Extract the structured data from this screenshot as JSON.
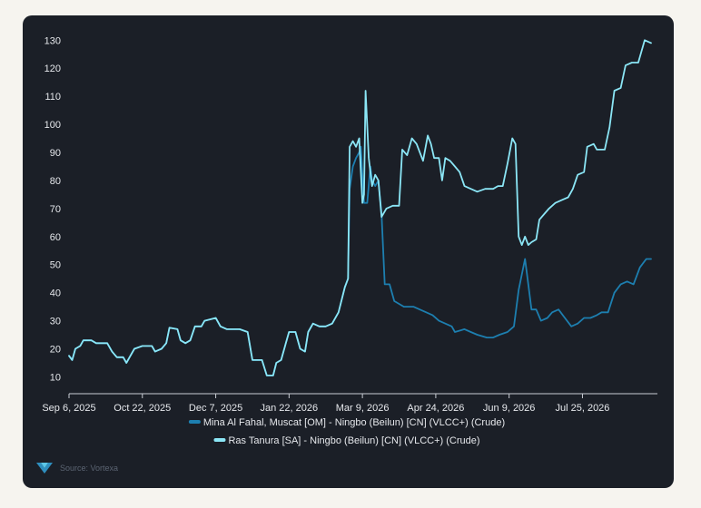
{
  "source": {
    "text": "Source: Vortexa",
    "logo_icon": "vortexa-logo"
  },
  "colors": {
    "background": "#1b1f27",
    "page": "#f6f4ef",
    "axis": "#c9cdd4",
    "text": "#e6e8ec"
  },
  "chart_data": {
    "type": "line",
    "title": "",
    "xlabel": "",
    "ylabel": "",
    "grid": false,
    "legend_position": "bottom-center",
    "x_range": [
      "2025-09-06",
      "2026-09-10"
    ],
    "ylim": [
      4,
      133
    ],
    "y_ticks": [
      10,
      20,
      30,
      40,
      50,
      60,
      70,
      80,
      90,
      100,
      110,
      120,
      130
    ],
    "x_ticks": [
      {
        "date": "2025-09-06",
        "label": "Sep 6, 2025"
      },
      {
        "date": "2025-10-22",
        "label": "Oct 22, 2025"
      },
      {
        "date": "2025-12-07",
        "label": "Dec 7, 2025"
      },
      {
        "date": "2026-01-22",
        "label": "Jan 22, 2026"
      },
      {
        "date": "2026-03-09",
        "label": "Mar 9, 2026"
      },
      {
        "date": "2026-04-24",
        "label": "Apr 24, 2026"
      },
      {
        "date": "2026-06-09",
        "label": "Jun 9, 2026"
      },
      {
        "date": "2026-07-25",
        "label": "Jul 25, 2026"
      }
    ],
    "series": [
      {
        "name": "Mina Al Fahal, Muscat [OM] - Ningbo (Beilun) [CN] (VLCC+) (Crude)",
        "color": "#1d7fb0",
        "points": [
          [
            "2025-09-06",
            17.5
          ],
          [
            "2025-09-08",
            16
          ],
          [
            "2025-09-10",
            20
          ],
          [
            "2025-09-13",
            21
          ],
          [
            "2025-09-15",
            23
          ],
          [
            "2025-09-20",
            23
          ],
          [
            "2025-09-23",
            22
          ],
          [
            "2025-09-30",
            22
          ],
          [
            "2025-10-03",
            19
          ],
          [
            "2025-10-06",
            17
          ],
          [
            "2025-10-10",
            17
          ],
          [
            "2025-10-12",
            15
          ],
          [
            "2025-10-14",
            17
          ],
          [
            "2025-10-17",
            20
          ],
          [
            "2025-10-22",
            21
          ],
          [
            "2025-10-28",
            21
          ],
          [
            "2025-10-30",
            19
          ],
          [
            "2025-11-03",
            20
          ],
          [
            "2025-11-06",
            22
          ],
          [
            "2025-11-08",
            27.5
          ],
          [
            "2025-11-13",
            27
          ],
          [
            "2025-11-15",
            23
          ],
          [
            "2025-11-18",
            22
          ],
          [
            "2025-11-21",
            23
          ],
          [
            "2025-11-24",
            28
          ],
          [
            "2025-11-28",
            28
          ],
          [
            "2025-11-30",
            30
          ],
          [
            "2025-12-07",
            31
          ],
          [
            "2025-12-10",
            28
          ],
          [
            "2025-12-14",
            27
          ],
          [
            "2025-12-22",
            27
          ],
          [
            "2025-12-27",
            26
          ],
          [
            "2025-12-30",
            16
          ],
          [
            "2026-01-05",
            16
          ],
          [
            "2026-01-08",
            10.5
          ],
          [
            "2026-01-12",
            10.5
          ],
          [
            "2026-01-14",
            15
          ],
          [
            "2026-01-17",
            16
          ],
          [
            "2026-01-20",
            22
          ],
          [
            "2026-01-22",
            26
          ],
          [
            "2026-01-26",
            26
          ],
          [
            "2026-01-29",
            20
          ],
          [
            "2026-02-01",
            19
          ],
          [
            "2026-02-03",
            26
          ],
          [
            "2026-02-06",
            29
          ],
          [
            "2026-02-10",
            28
          ],
          [
            "2026-02-14",
            28
          ],
          [
            "2026-02-18",
            29
          ],
          [
            "2026-02-22",
            33
          ],
          [
            "2026-02-26",
            42
          ],
          [
            "2026-02-28",
            45
          ],
          [
            "2026-03-01",
            77
          ],
          [
            "2026-03-03",
            85
          ],
          [
            "2026-03-05",
            88
          ],
          [
            "2026-03-07",
            90
          ],
          [
            "2026-03-08",
            92
          ],
          [
            "2026-03-10",
            72
          ],
          [
            "2026-03-12",
            72
          ],
          [
            "2026-03-14",
            85
          ],
          [
            "2026-03-15",
            80
          ],
          [
            "2026-03-17",
            78
          ],
          [
            "2026-03-19",
            80
          ],
          [
            "2026-03-21",
            68
          ],
          [
            "2026-03-23",
            43
          ],
          [
            "2026-03-26",
            43
          ],
          [
            "2026-03-29",
            37
          ],
          [
            "2026-04-01",
            36
          ],
          [
            "2026-04-04",
            35
          ],
          [
            "2026-04-10",
            35
          ],
          [
            "2026-04-14",
            34
          ],
          [
            "2026-04-18",
            33
          ],
          [
            "2026-04-22",
            32
          ],
          [
            "2026-04-26",
            30
          ],
          [
            "2026-04-30",
            29
          ],
          [
            "2026-05-04",
            28
          ],
          [
            "2026-05-06",
            26
          ],
          [
            "2026-05-12",
            27
          ],
          [
            "2026-05-16",
            26
          ],
          [
            "2026-05-20",
            25
          ],
          [
            "2026-05-26",
            24
          ],
          [
            "2026-05-30",
            24
          ],
          [
            "2026-06-03",
            25
          ],
          [
            "2026-06-08",
            26
          ],
          [
            "2026-06-12",
            28
          ],
          [
            "2026-06-15",
            41
          ],
          [
            "2026-06-19",
            52
          ],
          [
            "2026-06-21",
            43
          ],
          [
            "2026-06-23",
            34
          ],
          [
            "2026-06-26",
            34
          ],
          [
            "2026-06-29",
            30
          ],
          [
            "2026-07-03",
            31
          ],
          [
            "2026-07-06",
            33
          ],
          [
            "2026-07-10",
            34
          ],
          [
            "2026-07-14",
            31
          ],
          [
            "2026-07-18",
            28
          ],
          [
            "2026-07-22",
            29
          ],
          [
            "2026-07-26",
            31
          ],
          [
            "2026-07-30",
            31
          ],
          [
            "2026-08-03",
            32
          ],
          [
            "2026-08-06",
            33
          ],
          [
            "2026-08-10",
            33
          ],
          [
            "2026-08-14",
            40
          ],
          [
            "2026-08-18",
            43
          ],
          [
            "2026-08-22",
            44
          ],
          [
            "2026-08-26",
            43
          ],
          [
            "2026-08-30",
            49
          ],
          [
            "2026-09-03",
            52
          ],
          [
            "2026-09-06",
            52
          ]
        ]
      },
      {
        "name": "Ras Tanura [SA] - Ningbo (Beilun) [CN] (VLCC+) (Crude)",
        "color": "#8be6f6",
        "points": [
          [
            "2025-09-06",
            17.5
          ],
          [
            "2025-09-08",
            16
          ],
          [
            "2025-09-10",
            20
          ],
          [
            "2025-09-13",
            21
          ],
          [
            "2025-09-15",
            23
          ],
          [
            "2025-09-20",
            23
          ],
          [
            "2025-09-23",
            22
          ],
          [
            "2025-09-30",
            22
          ],
          [
            "2025-10-03",
            19
          ],
          [
            "2025-10-06",
            17
          ],
          [
            "2025-10-10",
            17
          ],
          [
            "2025-10-12",
            15
          ],
          [
            "2025-10-14",
            17
          ],
          [
            "2025-10-17",
            20
          ],
          [
            "2025-10-22",
            21
          ],
          [
            "2025-10-28",
            21
          ],
          [
            "2025-10-30",
            19
          ],
          [
            "2025-11-03",
            20
          ],
          [
            "2025-11-06",
            22
          ],
          [
            "2025-11-08",
            27.5
          ],
          [
            "2025-11-13",
            27
          ],
          [
            "2025-11-15",
            23
          ],
          [
            "2025-11-18",
            22
          ],
          [
            "2025-11-21",
            23
          ],
          [
            "2025-11-24",
            28
          ],
          [
            "2025-11-28",
            28
          ],
          [
            "2025-11-30",
            30
          ],
          [
            "2025-12-07",
            31
          ],
          [
            "2025-12-10",
            28
          ],
          [
            "2025-12-14",
            27
          ],
          [
            "2025-12-22",
            27
          ],
          [
            "2025-12-27",
            26
          ],
          [
            "2025-12-30",
            16
          ],
          [
            "2026-01-05",
            16
          ],
          [
            "2026-01-08",
            10.5
          ],
          [
            "2026-01-12",
            10.5
          ],
          [
            "2026-01-14",
            15
          ],
          [
            "2026-01-17",
            16
          ],
          [
            "2026-01-20",
            22
          ],
          [
            "2026-01-22",
            26
          ],
          [
            "2026-01-26",
            26
          ],
          [
            "2026-01-29",
            20
          ],
          [
            "2026-02-01",
            19
          ],
          [
            "2026-02-03",
            26
          ],
          [
            "2026-02-06",
            29
          ],
          [
            "2026-02-10",
            28
          ],
          [
            "2026-02-14",
            28
          ],
          [
            "2026-02-18",
            29
          ],
          [
            "2026-02-22",
            33
          ],
          [
            "2026-02-26",
            42
          ],
          [
            "2026-02-28",
            45
          ],
          [
            "2026-03-01",
            92
          ],
          [
            "2026-03-03",
            94
          ],
          [
            "2026-03-05",
            92
          ],
          [
            "2026-03-07",
            95
          ],
          [
            "2026-03-09",
            72
          ],
          [
            "2026-03-10",
            75
          ],
          [
            "2026-03-11",
            112
          ],
          [
            "2026-03-13",
            88
          ],
          [
            "2026-03-15",
            78
          ],
          [
            "2026-03-17",
            82
          ],
          [
            "2026-03-19",
            80
          ],
          [
            "2026-03-21",
            67
          ],
          [
            "2026-03-24",
            70
          ],
          [
            "2026-03-28",
            71
          ],
          [
            "2026-04-01",
            71
          ],
          [
            "2026-04-03",
            91
          ],
          [
            "2026-04-06",
            89
          ],
          [
            "2026-04-09",
            95
          ],
          [
            "2026-04-12",
            93
          ],
          [
            "2026-04-16",
            87
          ],
          [
            "2026-04-19",
            96
          ],
          [
            "2026-04-21",
            93
          ],
          [
            "2026-04-23",
            88
          ],
          [
            "2026-04-26",
            88
          ],
          [
            "2026-04-28",
            80
          ],
          [
            "2026-04-30",
            88
          ],
          [
            "2026-05-03",
            87
          ],
          [
            "2026-05-06",
            85
          ],
          [
            "2026-05-09",
            83
          ],
          [
            "2026-05-12",
            78
          ],
          [
            "2026-05-16",
            77
          ],
          [
            "2026-05-20",
            76
          ],
          [
            "2026-05-25",
            77
          ],
          [
            "2026-05-30",
            77
          ],
          [
            "2026-06-02",
            78
          ],
          [
            "2026-06-05",
            78
          ],
          [
            "2026-06-08",
            86
          ],
          [
            "2026-06-11",
            95
          ],
          [
            "2026-06-13",
            93
          ],
          [
            "2026-06-15",
            60
          ],
          [
            "2026-06-17",
            57
          ],
          [
            "2026-06-19",
            60
          ],
          [
            "2026-06-21",
            57
          ],
          [
            "2026-06-23",
            58
          ],
          [
            "2026-06-26",
            59
          ],
          [
            "2026-06-28",
            66
          ],
          [
            "2026-07-01",
            68
          ],
          [
            "2026-07-04",
            70
          ],
          [
            "2026-07-08",
            72
          ],
          [
            "2026-07-12",
            73
          ],
          [
            "2026-07-16",
            74
          ],
          [
            "2026-07-19",
            77
          ],
          [
            "2026-07-22",
            82
          ],
          [
            "2026-07-26",
            83
          ],
          [
            "2026-07-28",
            92
          ],
          [
            "2026-08-01",
            93
          ],
          [
            "2026-08-03",
            91
          ],
          [
            "2026-08-08",
            91
          ],
          [
            "2026-08-11",
            99
          ],
          [
            "2026-08-14",
            112
          ],
          [
            "2026-08-18",
            113
          ],
          [
            "2026-08-21",
            121
          ],
          [
            "2026-08-25",
            122
          ],
          [
            "2026-08-29",
            122
          ],
          [
            "2026-09-02",
            130
          ],
          [
            "2026-09-06",
            129
          ]
        ]
      }
    ]
  }
}
